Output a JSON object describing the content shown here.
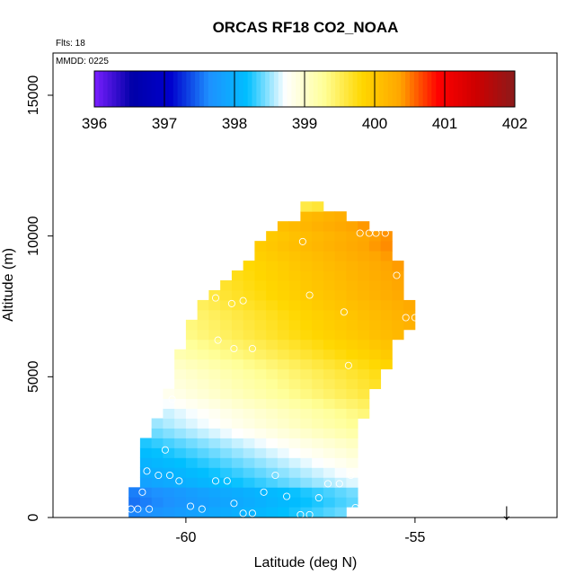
{
  "chart_data": {
    "type": "heatmap",
    "title": "ORCAS RF18 CO2_NOAA",
    "annotations": {
      "flights": "Flts: 18",
      "mmdd": "MMDD: 0225"
    },
    "xlabel": "Latitude (deg N)",
    "ylabel": "Altitude (m)",
    "xlim": [
      -62.9,
      -51.9
    ],
    "ylim": [
      0,
      16500
    ],
    "x_ticks": [
      {
        "value": -60,
        "label": "-60"
      },
      {
        "value": -55,
        "label": "-55"
      }
    ],
    "y_ticks": [
      {
        "value": 0,
        "label": "0"
      },
      {
        "value": 5000,
        "label": "5000"
      },
      {
        "value": 10000,
        "label": "10000"
      },
      {
        "value": 15000,
        "label": "15000"
      }
    ],
    "colorbar": {
      "min": 396,
      "max": 402,
      "ticks": [
        "396",
        "397",
        "398",
        "399",
        "400",
        "401",
        "402"
      ],
      "stops": [
        "#7a1fff",
        "#0000a8",
        "#0000cd",
        "#1e90ff",
        "#00bfff",
        "#ffffff",
        "#ffff99",
        "#ffd700",
        "#ffa500",
        "#ff0000",
        "#cd0000",
        "#8b1a1a"
      ]
    },
    "grid_cells": {
      "lat_step": 0.25,
      "alt_step": 350,
      "profile": [
        {
          "alt": 200,
          "lat_min": -61.25,
          "lat_max": -56.5,
          "value": 398.0
        },
        {
          "alt": 550,
          "lat_min": -61.25,
          "lat_max": -56.25,
          "value": 397.95
        },
        {
          "alt": 900,
          "lat_min": -61.25,
          "lat_max": -56.25,
          "value": 398.0
        },
        {
          "alt": 1250,
          "lat_min": -61.0,
          "lat_max": -56.25,
          "value": 398.25
        },
        {
          "alt": 1600,
          "lat_min": -61.0,
          "lat_max": -56.25,
          "value": 398.35
        },
        {
          "alt": 1950,
          "lat_min": -61.0,
          "lat_max": -56.25,
          "value": 398.45
        },
        {
          "alt": 2300,
          "lat_min": -61.0,
          "lat_max": -56.25,
          "value": 398.55
        },
        {
          "alt": 2650,
          "lat_min": -61.0,
          "lat_max": -56.25,
          "value": 398.65
        },
        {
          "alt": 3000,
          "lat_min": -60.75,
          "lat_max": -56.25,
          "value": 398.8
        },
        {
          "alt": 3350,
          "lat_min": -60.75,
          "lat_max": -56.25,
          "value": 398.9
        },
        {
          "alt": 3700,
          "lat_min": -60.5,
          "lat_max": -56.0,
          "value": 399.0
        },
        {
          "alt": 4050,
          "lat_min": -60.5,
          "lat_max": -56.0,
          "value": 399.1
        },
        {
          "alt": 4400,
          "lat_min": -60.5,
          "lat_max": -56.0,
          "value": 399.2
        },
        {
          "alt": 4750,
          "lat_min": -60.25,
          "lat_max": -55.75,
          "value": 399.3
        },
        {
          "alt": 5100,
          "lat_min": -60.25,
          "lat_max": -55.75,
          "value": 399.35
        },
        {
          "alt": 5450,
          "lat_min": -60.25,
          "lat_max": -55.5,
          "value": 399.45
        },
        {
          "alt": 5800,
          "lat_min": -60.25,
          "lat_max": -55.5,
          "value": 399.55
        },
        {
          "alt": 6150,
          "lat_min": -60.0,
          "lat_max": -55.5,
          "value": 399.65
        },
        {
          "alt": 6500,
          "lat_min": -60.0,
          "lat_max": -55.25,
          "value": 399.75
        },
        {
          "alt": 6850,
          "lat_min": -60.0,
          "lat_max": -55.0,
          "value": 399.8
        },
        {
          "alt": 7200,
          "lat_min": -59.75,
          "lat_max": -55.0,
          "value": 399.85
        },
        {
          "alt": 7550,
          "lat_min": -59.75,
          "lat_max": -55.0,
          "value": 399.9
        },
        {
          "alt": 7900,
          "lat_min": -59.5,
          "lat_max": -55.25,
          "value": 399.95
        },
        {
          "alt": 8250,
          "lat_min": -59.25,
          "lat_max": -55.25,
          "value": 400.0
        },
        {
          "alt": 8600,
          "lat_min": -59.0,
          "lat_max": -55.25,
          "value": 400.05
        },
        {
          "alt": 8950,
          "lat_min": -58.75,
          "lat_max": -55.25,
          "value": 400.1
        },
        {
          "alt": 9300,
          "lat_min": -58.5,
          "lat_max": -55.5,
          "value": 400.15
        },
        {
          "alt": 9650,
          "lat_min": -58.5,
          "lat_max": -55.5,
          "value": 400.2
        },
        {
          "alt": 10000,
          "lat_min": -58.25,
          "lat_max": -55.5,
          "value": 400.2
        },
        {
          "alt": 10350,
          "lat_min": -58.0,
          "lat_max": -56.0,
          "value": 400.25
        },
        {
          "alt": 10700,
          "lat_min": -57.5,
          "lat_max": -56.5,
          "value": 400.2
        },
        {
          "alt": 11050,
          "lat_min": -57.5,
          "lat_max": -57.0,
          "value": 399.6
        }
      ],
      "lat_gradient_per_deg": 0.18
    },
    "sample_points": [
      {
        "lat": -61.2,
        "alt": 300
      },
      {
        "lat": -61.05,
        "alt": 300
      },
      {
        "lat": -60.8,
        "alt": 300
      },
      {
        "lat": -60.95,
        "alt": 900
      },
      {
        "lat": -60.85,
        "alt": 1650
      },
      {
        "lat": -60.6,
        "alt": 1500
      },
      {
        "lat": -60.35,
        "alt": 1500
      },
      {
        "lat": -60.15,
        "alt": 1300
      },
      {
        "lat": -59.9,
        "alt": 400
      },
      {
        "lat": -59.65,
        "alt": 300
      },
      {
        "lat": -59.35,
        "alt": 1300
      },
      {
        "lat": -59.1,
        "alt": 1300
      },
      {
        "lat": -58.95,
        "alt": 500
      },
      {
        "lat": -58.75,
        "alt": 150
      },
      {
        "lat": -58.55,
        "alt": 150
      },
      {
        "lat": -58.3,
        "alt": 900
      },
      {
        "lat": -58.05,
        "alt": 1500
      },
      {
        "lat": -57.8,
        "alt": 750
      },
      {
        "lat": -57.5,
        "alt": 100
      },
      {
        "lat": -57.3,
        "alt": 100
      },
      {
        "lat": -57.1,
        "alt": 700
      },
      {
        "lat": -56.9,
        "alt": 1200
      },
      {
        "lat": -56.65,
        "alt": 1200
      },
      {
        "lat": -56.4,
        "alt": 1500
      },
      {
        "lat": -56.3,
        "alt": 350
      },
      {
        "lat": -56.15,
        "alt": 150
      },
      {
        "lat": -56.05,
        "alt": 100
      },
      {
        "lat": -57.7,
        "alt": 11300
      },
      {
        "lat": -57.45,
        "alt": 9800
      },
      {
        "lat": -56.2,
        "alt": 10100
      },
      {
        "lat": -56.0,
        "alt": 10100
      },
      {
        "lat": -55.85,
        "alt": 10100
      },
      {
        "lat": -55.65,
        "alt": 10100
      },
      {
        "lat": -55.4,
        "alt": 8600
      },
      {
        "lat": -55.2,
        "alt": 7100
      },
      {
        "lat": -55.0,
        "alt": 7100
      },
      {
        "lat": -56.55,
        "alt": 7300
      },
      {
        "lat": -57.3,
        "alt": 7900
      },
      {
        "lat": -58.75,
        "alt": 7700
      },
      {
        "lat": -59.35,
        "alt": 7800
      },
      {
        "lat": -59.0,
        "alt": 7600
      },
      {
        "lat": -59.3,
        "alt": 6300
      },
      {
        "lat": -58.95,
        "alt": 6000
      },
      {
        "lat": -58.55,
        "alt": 6000
      },
      {
        "lat": -56.45,
        "alt": 5400
      },
      {
        "lat": -60.45,
        "alt": 2400
      },
      {
        "lat": -60.3,
        "alt": 4200
      }
    ],
    "marker_arrow": {
      "lat": -53.0,
      "label": "↓"
    }
  }
}
